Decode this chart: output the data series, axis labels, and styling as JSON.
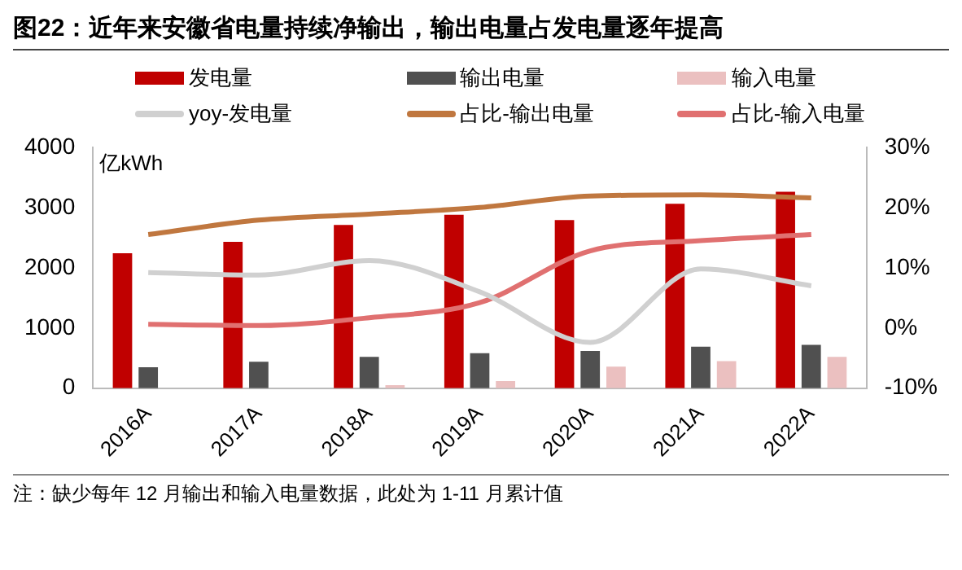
{
  "chart_data": {
    "type": "bar",
    "title": "图22：近年来安徽省电量持续净输出，输出电量占发电量逐年提高",
    "categories": [
      "2016A",
      "2017A",
      "2018A",
      "2019A",
      "2020A",
      "2021A",
      "2022A"
    ],
    "ylabel": "亿kWh",
    "series": [
      {
        "name": "发电量",
        "color": "#c00000",
        "values": [
          2240,
          2430,
          2710,
          2880,
          2790,
          3060,
          3260
        ]
      },
      {
        "name": "输出电量",
        "color": "#505050",
        "values": [
          350,
          440,
          520,
          580,
          620,
          690,
          720
        ]
      },
      {
        "name": "输入电量",
        "color": "#ebc0c0",
        "values": [
          0,
          0,
          50,
          120,
          360,
          450,
          520
        ]
      },
      {
        "name": "yoy-发电量",
        "type": "line",
        "axis": "y2",
        "color": "#d0d0d0",
        "values": [
          9.2,
          8.8,
          11.2,
          6,
          -2.4,
          9.8,
          7
        ]
      },
      {
        "name": "占比-输出电量",
        "type": "line",
        "axis": "y2",
        "color": "#c0773f",
        "values": [
          15.5,
          17.9,
          18.9,
          20,
          21.9,
          22.1,
          21.6
        ]
      },
      {
        "name": "占比-输入电量",
        "type": "line",
        "axis": "y2",
        "color": "#e07070",
        "values": [
          0.6,
          0.4,
          1.7,
          4.2,
          12.8,
          14.5,
          15.5
        ]
      }
    ],
    "ylim": [
      0,
      4000
    ],
    "yticks": [
      0,
      1000,
      2000,
      3000,
      4000
    ],
    "y2lim": [
      -10,
      30
    ],
    "y2ticks": [
      {
        "value": -10,
        "label": "-10%"
      },
      {
        "value": 0,
        "label": "0%"
      },
      {
        "value": 10,
        "label": "10%"
      },
      {
        "value": 20,
        "label": "20%"
      },
      {
        "value": 30,
        "label": "30%"
      }
    ],
    "grid": false,
    "legend": "top",
    "marker": "none",
    "annotations": [
      "注：缺少每年 12 月输出和输入电量数据，此处为 1-11 月累计值"
    ]
  }
}
